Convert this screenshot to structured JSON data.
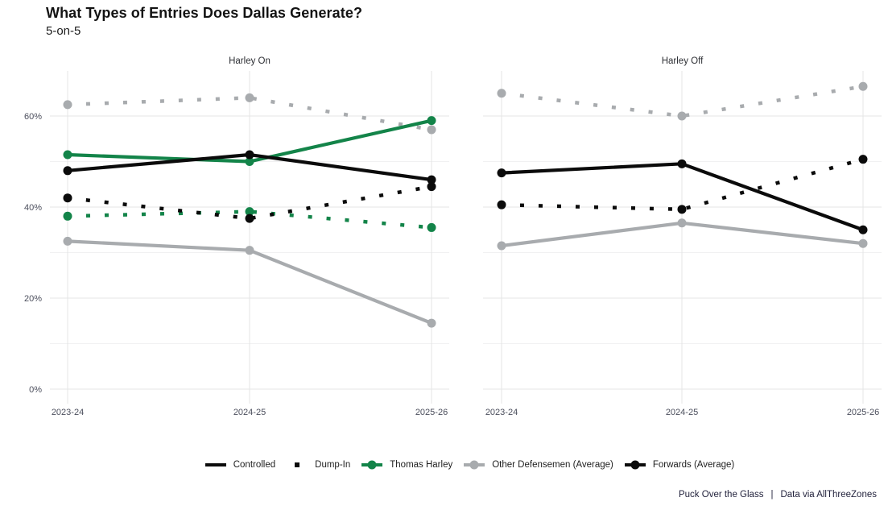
{
  "title": "What Types of Entries Does Dallas Generate?",
  "subtitle": "5-on-5",
  "footer": {
    "source_left": "Puck Over the Glass",
    "separator": "|",
    "source_right": "Data via AllThreeZones"
  },
  "colors": {
    "green": "#138449",
    "gray": "#a8abae",
    "black": "#0b0b0b",
    "grid_major": "#e4e5e6",
    "grid_minor": "#f1f1f2",
    "axis_text": "#4b4e5c",
    "facet_text": "#2c2e33"
  },
  "chart_data": {
    "type": "line",
    "title": "What Types of Entries Does Dallas Generate?",
    "subtitle": "5-on-5",
    "xlabel": "",
    "ylabel": "",
    "categories": [
      "2023-24",
      "2024-25",
      "2025-26"
    ],
    "y_ticks": [
      {
        "label": "0%",
        "value": 0
      },
      {
        "label": "20%",
        "value": 20
      },
      {
        "label": "40%",
        "value": 40
      },
      {
        "label": "60%",
        "value": 60
      }
    ],
    "y_minor_gridlines": [
      10,
      30,
      50
    ],
    "ylim": [
      0,
      70
    ],
    "grid": true,
    "legend_position": "bottom",
    "facets": [
      {
        "label": "Harley On",
        "series": [
          {
            "name": "Other Defensemen (Average) — Controlled",
            "color_key": "gray",
            "linetype": "solid",
            "values": [
              32.5,
              30.5,
              14.5
            ]
          },
          {
            "name": "Other Defensemen (Average) — Dump-In",
            "color_key": "gray",
            "linetype": "dotted",
            "values": [
              62.5,
              64,
              57
            ]
          },
          {
            "name": "Thomas Harley — Dump-In",
            "color_key": "green",
            "linetype": "dotted",
            "values": [
              38,
              39,
              35.5
            ]
          },
          {
            "name": "Thomas Harley — Controlled",
            "color_key": "green",
            "linetype": "solid",
            "values": [
              51.5,
              50,
              59
            ]
          },
          {
            "name": "Forwards (Average) — Dump-In",
            "color_key": "black",
            "linetype": "dotted",
            "values": [
              42,
              37.5,
              44.5
            ]
          },
          {
            "name": "Forwards (Average) — Controlled",
            "color_key": "black",
            "linetype": "solid",
            "values": [
              48,
              51.5,
              46
            ]
          }
        ]
      },
      {
        "label": "Harley Off",
        "series": [
          {
            "name": "Other Defensemen (Average) — Controlled",
            "color_key": "gray",
            "linetype": "solid",
            "values": [
              31.5,
              36.5,
              32
            ]
          },
          {
            "name": "Other Defensemen (Average) — Dump-In",
            "color_key": "gray",
            "linetype": "dotted",
            "values": [
              65,
              60,
              66.5
            ]
          },
          {
            "name": "Forwards (Average) — Dump-In",
            "color_key": "black",
            "linetype": "dotted",
            "values": [
              40.5,
              39.5,
              50.5
            ]
          },
          {
            "name": "Forwards (Average) — Controlled",
            "color_key": "black",
            "linetype": "solid",
            "values": [
              47.5,
              49.5,
              35
            ]
          }
        ]
      }
    ],
    "legend": [
      {
        "label": "Controlled",
        "key": "line",
        "color_key": "black"
      },
      {
        "label": "Dump-In",
        "key": "square",
        "color_key": "black"
      },
      {
        "label": "Thomas Harley",
        "key": "line-point",
        "color_key": "green"
      },
      {
        "label": "Other Defensemen (Average)",
        "key": "line-point",
        "color_key": "gray"
      },
      {
        "label": "Forwards (Average)",
        "key": "line-point",
        "color_key": "black"
      }
    ]
  }
}
